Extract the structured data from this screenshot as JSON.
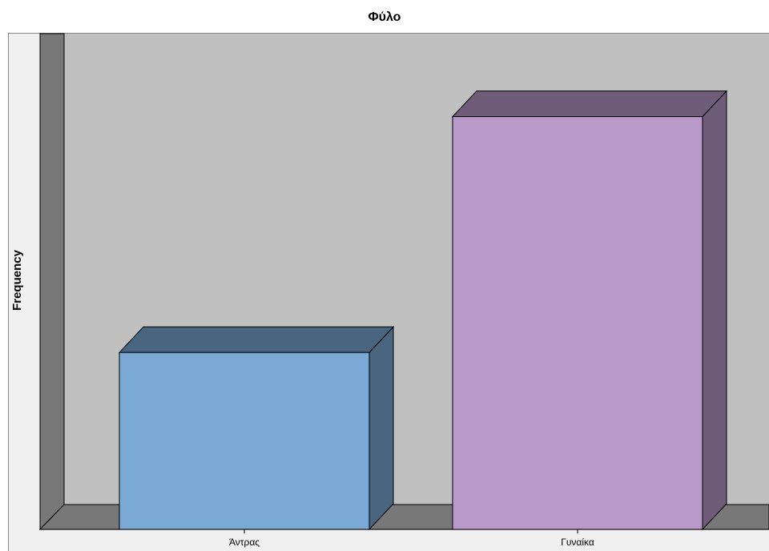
{
  "chart_data": {
    "type": "bar3d",
    "title": "Φύλο",
    "y_label": "Frequency",
    "categories": [
      "Άντρας",
      "Γυναίκα"
    ],
    "values": [
      30,
      70
    ],
    "colors": [
      "#7ba9d6",
      "#b899c9"
    ],
    "ylim": [
      0,
      80
    ]
  }
}
